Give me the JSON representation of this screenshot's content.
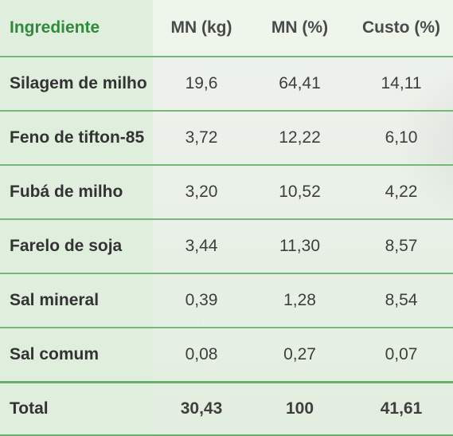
{
  "header": {
    "ingrediente": "Ingrediente",
    "mn_kg": "MN (kg)",
    "mn_pct": "MN (%)",
    "custo_pct": "Custo (%)"
  },
  "rows": [
    {
      "ingrediente": "Silagem de milho",
      "mn_kg": "19,6",
      "mn_pct": "64,41",
      "custo_pct": "14,11"
    },
    {
      "ingrediente": "Feno de tifton-85",
      "mn_kg": "3,72",
      "mn_pct": "12,22",
      "custo_pct": "6,10"
    },
    {
      "ingrediente": "Fubá de milho",
      "mn_kg": "3,20",
      "mn_pct": "10,52",
      "custo_pct": "4,22"
    },
    {
      "ingrediente": "Farelo de soja",
      "mn_kg": "3,44",
      "mn_pct": "11,30",
      "custo_pct": "8,57"
    },
    {
      "ingrediente": "Sal mineral",
      "mn_kg": "0,39",
      "mn_pct": "1,28",
      "custo_pct": "8,54"
    },
    {
      "ingrediente": "Sal comum",
      "mn_kg": "0,08",
      "mn_pct": "0,27",
      "custo_pct": "0,07"
    }
  ],
  "total": {
    "label": "Total",
    "mn_kg": "30,43",
    "mn_pct": "100",
    "custo_pct": "41,61"
  },
  "colors": {
    "header_accent": "#2f8a3c",
    "rule": "#77b77c",
    "label_column_bg": "#dfeedd"
  }
}
